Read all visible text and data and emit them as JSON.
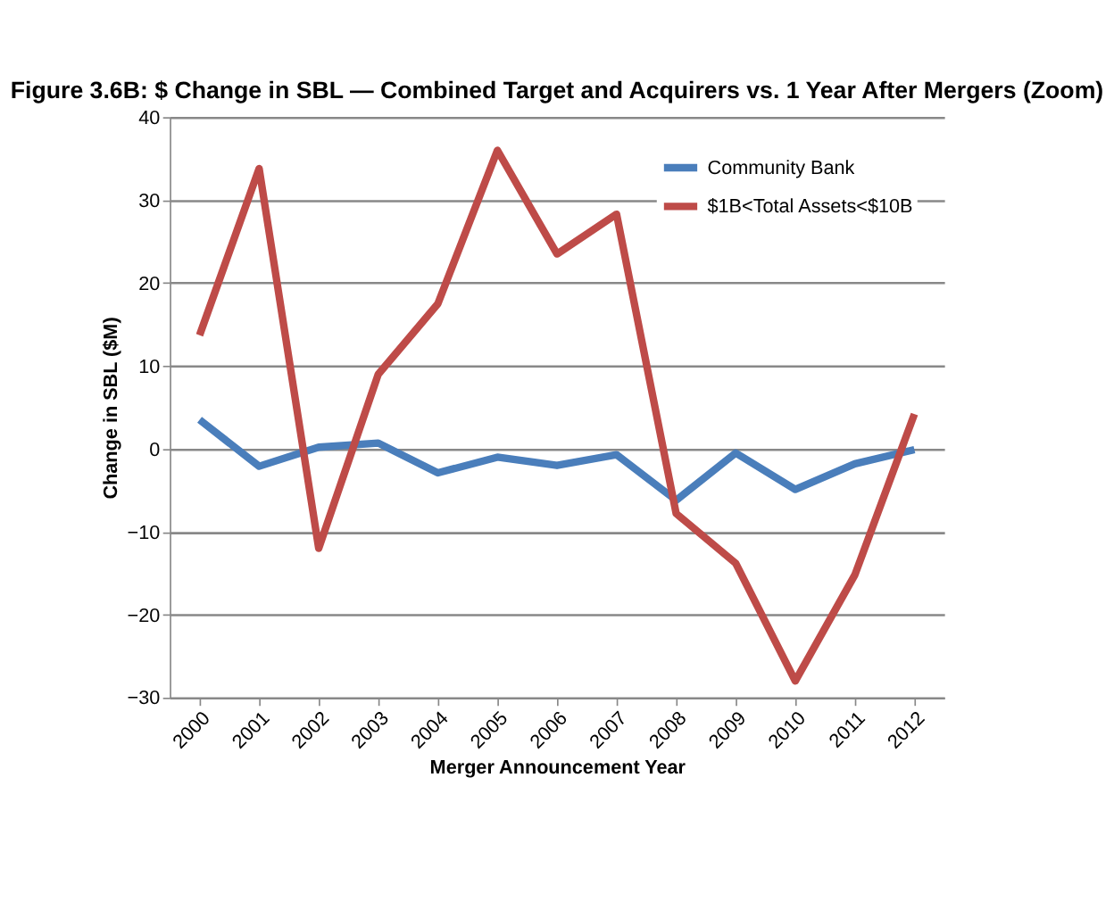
{
  "chart_data": {
    "type": "line",
    "title": "Figure 3.6B: $ Change in SBL — Combined Target and Acquirers vs. 1 Year After Mergers (Zoom)",
    "xlabel": "Merger Announcement Year",
    "ylabel": "Change in SBL ($M)",
    "categories": [
      "2000",
      "2001",
      "2002",
      "2003",
      "2004",
      "2005",
      "2006",
      "2007",
      "2008",
      "2009",
      "2010",
      "2011",
      "2012"
    ],
    "series": [
      {
        "name": "Community Bank",
        "color": "#4a7ebb",
        "values": [
          3.5,
          -2.1,
          0.2,
          0.7,
          -2.9,
          -1,
          -2,
          -0.7,
          -6.2,
          -0.5,
          -4.9,
          -1.8,
          -0.1
        ]
      },
      {
        "name": "$1B<Total Assets<$10B",
        "color": "#be4b48",
        "values": [
          13.7,
          33.8,
          -12,
          9,
          17.5,
          36,
          23.5,
          28.3,
          -7.8,
          -13.8,
          -28,
          -15.2,
          4.2
        ]
      }
    ],
    "ylim": [
      -30,
      40
    ],
    "yticks": [
      -30,
      -20,
      -10,
      0,
      10,
      20,
      30,
      40
    ],
    "grid": "y",
    "legend": "top right",
    "marker": "none",
    "line_style": "solid"
  }
}
